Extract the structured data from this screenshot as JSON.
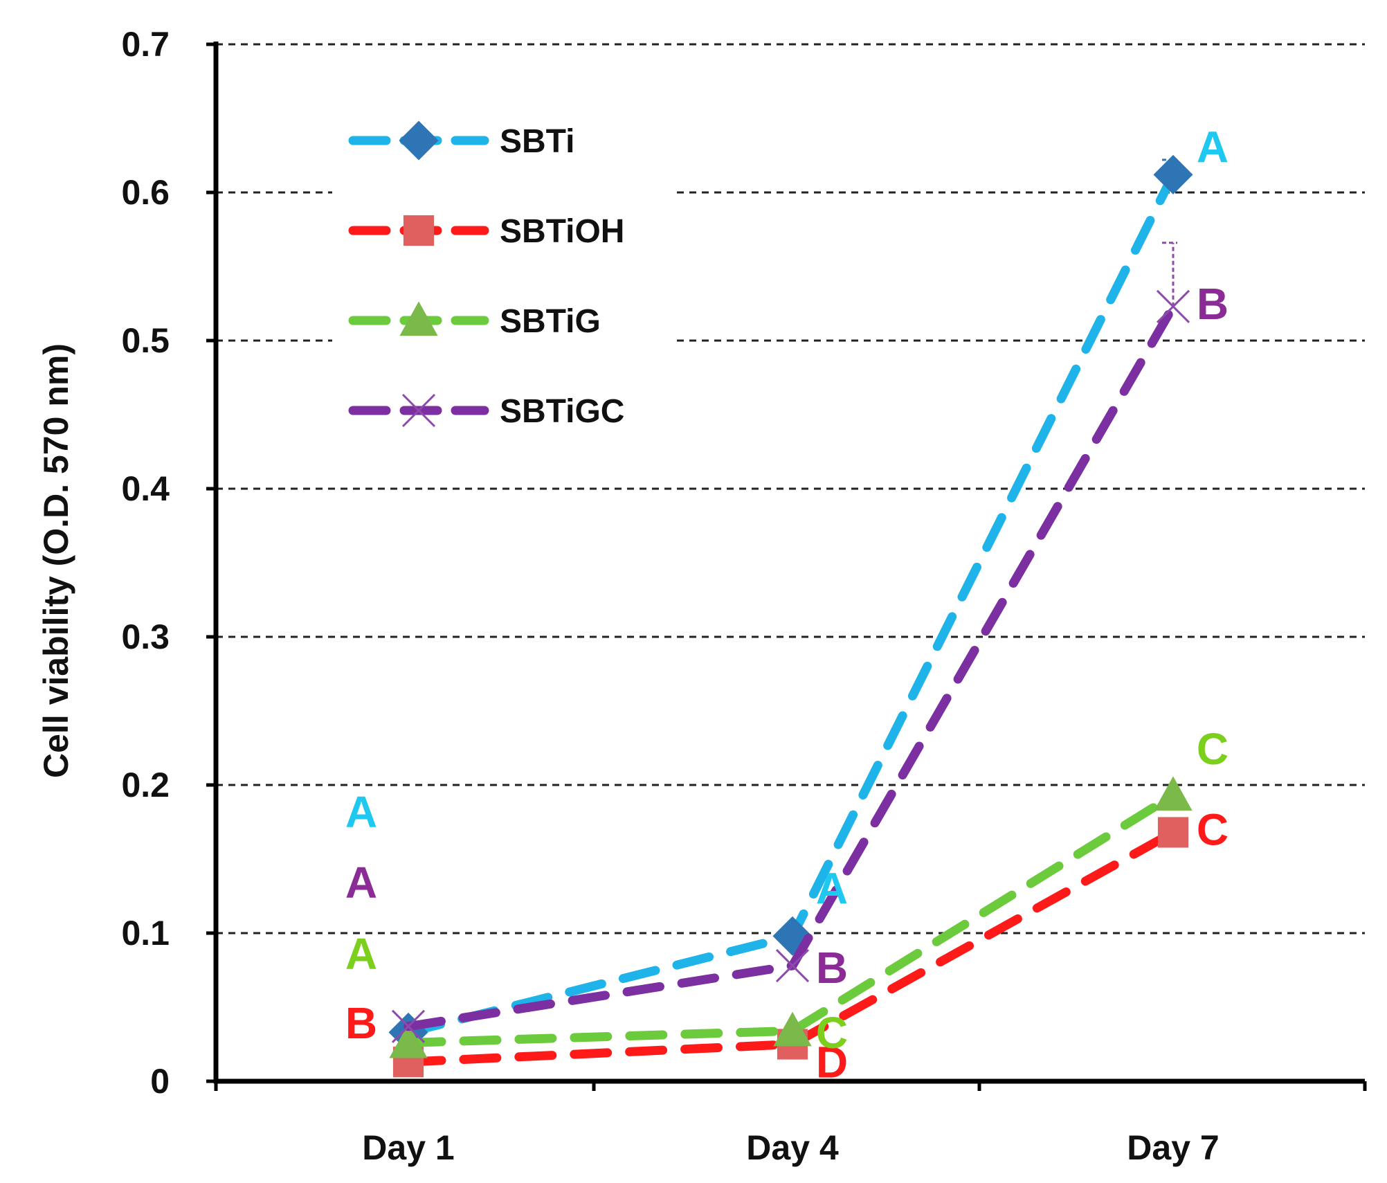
{
  "chart_data": {
    "type": "line",
    "title": "",
    "xlabel": "",
    "ylabel": "Cell viability (O.D. 570 nm)",
    "categories": [
      "Day 1",
      "Day 4",
      "Day 7"
    ],
    "ylim": [
      0,
      0.7
    ],
    "yticks": [
      "0",
      "0.1",
      "0.2",
      "0.3",
      "0.4",
      "0.5",
      "0.6",
      "0.7"
    ],
    "grid": true,
    "legend_position": "top-left",
    "series": [
      {
        "name": "SBTi",
        "values": [
          0.033,
          0.098,
          0.612
        ],
        "color": "#1eb4ea",
        "marker": "diamond",
        "marker_color": "#2e75b6",
        "letters": [
          "A",
          "A",
          "A"
        ],
        "letter_color": "#1ec8f0",
        "error_upper": [
          0.0,
          0.0,
          0.622
        ]
      },
      {
        "name": "SBTiOH",
        "values": [
          0.013,
          0.025,
          0.168
        ],
        "color": "#ff1a1a",
        "marker": "square",
        "marker_color": "#e06060",
        "letters": [
          "B",
          "D",
          "C"
        ],
        "letter_color": "#ff1a1a"
      },
      {
        "name": "SBTiG",
        "values": [
          0.026,
          0.034,
          0.193
        ],
        "color": "#6ccb3c",
        "marker": "triangle",
        "marker_color": "#7bb94a",
        "letters": [
          "A",
          "C",
          "C"
        ],
        "letter_color": "#7ccf1c"
      },
      {
        "name": "SBTiGC",
        "values": [
          0.037,
          0.078,
          0.523
        ],
        "color": "#7c2fa0",
        "marker": "x",
        "marker_color": "#8e4aaa",
        "letters": [
          "A",
          "B",
          "B"
        ],
        "letter_color": "#8a2b96",
        "error_upper": [
          0.0,
          0.0,
          0.566
        ]
      }
    ]
  }
}
